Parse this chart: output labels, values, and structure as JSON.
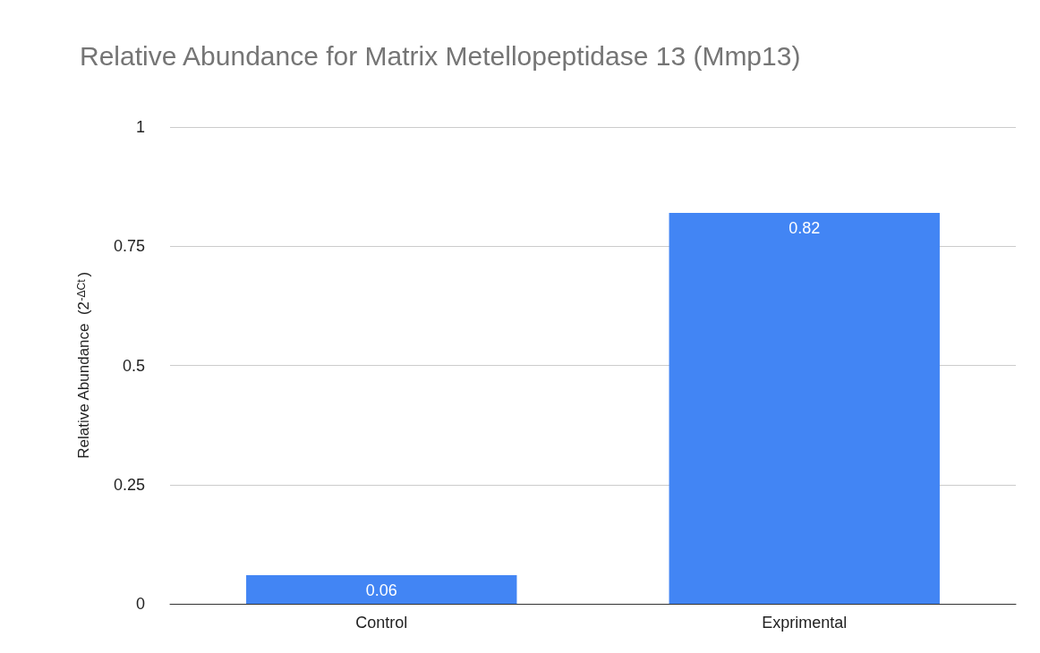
{
  "chart_data": {
    "type": "bar",
    "title": "Relative Abundance for Matrix Metellopeptidase 13 (Mmp13)",
    "ylabel": "Relative Abundance  (2$^{-ΔCt}$)",
    "categories": [
      "Control",
      "Exprimental"
    ],
    "series": [
      {
        "color": "#4285f4",
        "values": [
          0.06,
          0.82
        ]
      }
    ],
    "ylim": [
      0,
      1
    ],
    "yticks": [
      0,
      0.25,
      0.5,
      0.75,
      1
    ],
    "grid": "y",
    "data_labels": true
  }
}
